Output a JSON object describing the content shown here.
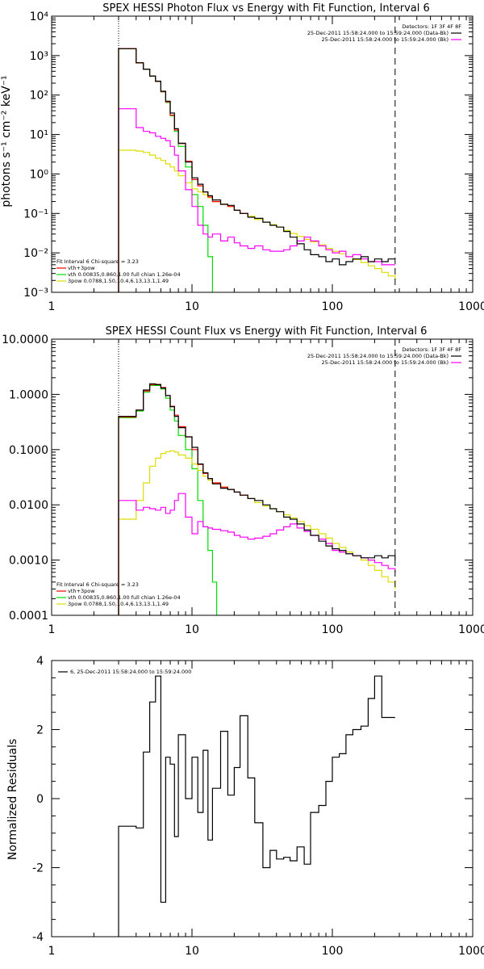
{
  "chart_data": [
    {
      "type": "line",
      "title": "SPEX HESSI Photon Flux vs Energy with Fit Function, Interval 6",
      "ylabel": "photons s⁻¹ cm⁻² keV⁻¹",
      "xscale": "log",
      "yscale": "log",
      "xlim": [
        1,
        1000
      ],
      "ylim": [
        0.001,
        10000
      ],
      "xticks": [
        "1",
        "10",
        "100",
        "1000"
      ],
      "yticks": [
        "10⁻³",
        "10⁻²",
        "10⁻¹",
        "10⁰",
        "10¹",
        "10²",
        "10³",
        "10⁴"
      ],
      "legend_top": [
        "Detectors: 1F 3F 4F 8F",
        "25-Dec-2011 15:58:24.000 to 15:59:24.000 (Data-Bk)",
        "25-Dec-2011 15:58:24.000 to 15:59:24.000 (Bk)"
      ],
      "legend_bottom": [
        "Fit Interval 6   Chi-square = 3.23",
        "vth+3pow",
        "vth 0.00835,0.860,1.00  full chian 1.26e-04",
        "3pow 0.0788,1.50,10.4,6.13,13.1,1.49"
      ],
      "vlines": [
        3,
        280
      ],
      "colors": {
        "data": "#000000",
        "total": "#ff0000",
        "vth": "#00dd00",
        "pow": "#dddd00",
        "bk": "#ff00ff"
      },
      "series": [
        {
          "key": "vth",
          "x": [
            3,
            3.5,
            4,
            4.5,
            5,
            5.5,
            6,
            6.5,
            7,
            7.5,
            8,
            9,
            10,
            11,
            12,
            13,
            14
          ],
          "values": [
            1500,
            1500,
            650,
            450,
            300,
            220,
            120,
            65,
            30,
            12,
            5,
            1.5,
            0.3,
            0.15,
            0.05,
            0.008,
            0.0005
          ]
        },
        {
          "key": "pow",
          "x": [
            3,
            3.5,
            4,
            4.5,
            5,
            5.5,
            6,
            6.5,
            7,
            7.5,
            8,
            9,
            10,
            11,
            12,
            13,
            14,
            16,
            18,
            20,
            22,
            25,
            28,
            32,
            36,
            40,
            45,
            50,
            56,
            63,
            70,
            80,
            90,
            100,
            112,
            125,
            140,
            160,
            180,
            200,
            225,
            250,
            280
          ],
          "values": [
            4,
            4,
            3.8,
            3.5,
            3,
            2.5,
            2.2,
            1.8,
            1.5,
            1.2,
            0.9,
            0.6,
            0.42,
            0.35,
            0.3,
            0.25,
            0.2,
            0.17,
            0.15,
            0.12,
            0.1,
            0.085,
            0.07,
            0.06,
            0.052,
            0.045,
            0.037,
            0.031,
            0.026,
            0.022,
            0.019,
            0.016,
            0.013,
            0.011,
            0.0095,
            0.008,
            0.0068,
            0.0057,
            0.0047,
            0.004,
            0.0032,
            0.0026,
            0.0021
          ]
        },
        {
          "key": "bk",
          "x": [
            3,
            3.5,
            4,
            4.5,
            5,
            5.5,
            6,
            6.5,
            7,
            7.5,
            8,
            9,
            10,
            11,
            12,
            13,
            14,
            16,
            18,
            20,
            22,
            25,
            28,
            32,
            36,
            40,
            45,
            50,
            56,
            63,
            70,
            80,
            90,
            100,
            112,
            125,
            140,
            160,
            180,
            200,
            225,
            250,
            280
          ],
          "values": [
            45,
            45,
            15,
            12,
            11,
            9,
            8,
            7,
            5,
            3,
            1.2,
            0.4,
            0.15,
            0.05,
            0.03,
            0.025,
            0.03,
            0.02,
            0.025,
            0.018,
            0.015,
            0.013,
            0.015,
            0.012,
            0.011,
            0.011,
            0.012,
            0.015,
            0.02,
            0.025,
            0.02,
            0.015,
            0.012,
            0.01,
            0.011,
            0.008,
            0.009,
            0.007,
            0.006,
            0.006,
            0.005,
            0.005,
            0.005
          ]
        },
        {
          "key": "total",
          "x": [
            3,
            3.5,
            4,
            4.5,
            5,
            5.5,
            6,
            6.5,
            7,
            7.5,
            8,
            9,
            10,
            11,
            12,
            13,
            14,
            16,
            18,
            20,
            22,
            25
          ],
          "values": [
            1504,
            1504,
            654,
            453,
            303,
            222,
            122,
            67,
            31,
            13,
            5.9,
            2.1,
            0.72,
            0.5,
            0.35,
            0.26,
            0.2,
            0.17,
            0.15,
            0.12,
            0.1,
            0.085
          ]
        },
        {
          "key": "data",
          "x": [
            3,
            3.5,
            4,
            4.5,
            5,
            5.5,
            6,
            6.5,
            7,
            7.5,
            8,
            9,
            10,
            11,
            12,
            13,
            14,
            16,
            18,
            20,
            22,
            25,
            28,
            32,
            36,
            40,
            45,
            50,
            56,
            63,
            70,
            80,
            90,
            100,
            112,
            125,
            140,
            160,
            180,
            200,
            225,
            250,
            280
          ],
          "values": [
            1500,
            1500,
            660,
            455,
            305,
            225,
            125,
            70,
            35,
            14,
            6,
            2,
            0.8,
            0.55,
            0.35,
            0.28,
            0.22,
            0.17,
            0.16,
            0.12,
            0.1,
            0.08,
            0.075,
            0.06,
            0.05,
            0.045,
            0.035,
            0.025,
            0.017,
            0.012,
            0.009,
            0.008,
            0.006,
            0.007,
            0.005,
            0.006,
            0.007,
            0.008,
            0.006,
            0.007,
            0.006,
            0.007,
            0.007
          ]
        }
      ]
    },
    {
      "type": "line",
      "title": "SPEX HESSI Count Flux vs Energy with Fit Function, Interval 6",
      "xscale": "log",
      "yscale": "log",
      "xlim": [
        1,
        1000
      ],
      "ylim": [
        0.0001,
        10
      ],
      "xticks": [
        "1",
        "10",
        "100",
        "1000"
      ],
      "yticks": [
        "0.0001",
        "0.0010",
        "0.0100",
        "0.1000",
        "1.0000",
        "10.0000"
      ],
      "legend_top": [
        "Detectors: 1F 3F 4F 8F",
        "25-Dec-2011 15:58:24.000 to 15:59:24.000 (Data-Bk)",
        "25-Dec-2011 15:58:24.000 to 15:59:24.000 (Bk)"
      ],
      "legend_bottom": [
        "Fit Interval 6   Chi-square = 3.23",
        "vth+3pow",
        "vth 0.00835,0.860,1.00  full chian 1.26e-04",
        "3pow 0.0788,1.50,10.4,6.13,13.1,1.49"
      ],
      "vlines": [
        3,
        280
      ],
      "series": [
        {
          "key": "vth",
          "x": [
            3,
            3.5,
            4,
            4.5,
            5,
            5.5,
            6,
            6.5,
            7,
            7.5,
            8,
            9,
            10,
            11,
            12,
            13,
            14,
            15
          ],
          "values": [
            0.38,
            0.38,
            0.5,
            1.1,
            1.45,
            1.45,
            1.25,
            0.85,
            0.52,
            0.33,
            0.18,
            0.1,
            0.045,
            0.012,
            0.004,
            0.0015,
            0.0004,
            0.0001
          ]
        },
        {
          "key": "pow",
          "x": [
            3,
            3.5,
            4,
            4.5,
            5,
            5.5,
            6,
            6.5,
            7,
            7.5,
            8,
            9,
            10,
            11,
            12,
            13,
            14,
            16,
            18,
            20,
            22,
            25,
            28,
            32,
            36,
            40,
            45,
            50,
            56,
            63,
            70,
            80,
            90,
            100,
            112,
            125,
            140,
            160,
            180,
            200,
            225,
            250,
            280
          ],
          "values": [
            0.0055,
            0.0055,
            0.012,
            0.025,
            0.05,
            0.07,
            0.085,
            0.092,
            0.095,
            0.09,
            0.08,
            0.07,
            0.055,
            0.042,
            0.033,
            0.028,
            0.024,
            0.021,
            0.019,
            0.017,
            0.015,
            0.013,
            0.011,
            0.0095,
            0.0085,
            0.0075,
            0.0066,
            0.0058,
            0.005,
            0.0042,
            0.0036,
            0.003,
            0.0025,
            0.002,
            0.0017,
            0.0014,
            0.0012,
            0.001,
            0.0008,
            0.00065,
            0.0005,
            0.0004,
            0.0003
          ]
        },
        {
          "key": "bk",
          "x": [
            3,
            3.5,
            4,
            4.5,
            5,
            5.5,
            6,
            6.5,
            7,
            7.5,
            8,
            9,
            10,
            11,
            12,
            13,
            14,
            16,
            18,
            20,
            22,
            25,
            28,
            32,
            36,
            40,
            45,
            50,
            56,
            63,
            70,
            80,
            90,
            100,
            112,
            125,
            140,
            160,
            180,
            200,
            225,
            250,
            280
          ],
          "values": [
            0.012,
            0.012,
            0.008,
            0.009,
            0.0085,
            0.008,
            0.009,
            0.007,
            0.008,
            0.012,
            0.016,
            0.006,
            0.003,
            0.005,
            0.004,
            0.0038,
            0.0036,
            0.0034,
            0.0032,
            0.0028,
            0.0026,
            0.0024,
            0.0025,
            0.0027,
            0.003,
            0.0035,
            0.004,
            0.0045,
            0.0038,
            0.0033,
            0.0028,
            0.0024,
            0.002,
            0.0015,
            0.0014,
            0.0013,
            0.0012,
            0.0011,
            0.001,
            0.0009,
            0.0008,
            0.0007,
            0.0006
          ]
        },
        {
          "key": "total",
          "x": [
            3,
            3.5,
            4,
            4.5,
            5,
            5.5,
            6,
            6.5,
            7,
            7.5,
            8,
            9,
            10,
            11,
            12,
            13,
            14,
            16,
            18,
            20,
            22,
            25
          ],
          "values": [
            0.39,
            0.39,
            0.52,
            1.15,
            1.5,
            1.52,
            1.33,
            0.95,
            0.61,
            0.42,
            0.26,
            0.17,
            0.1,
            0.054,
            0.037,
            0.03,
            0.025,
            0.021,
            0.019,
            0.017,
            0.015,
            0.013
          ]
        },
        {
          "key": "data",
          "x": [
            3,
            3.5,
            4,
            4.5,
            5,
            5.5,
            6,
            6.5,
            7,
            7.5,
            8,
            9,
            10,
            11,
            12,
            13,
            14,
            16,
            18,
            20,
            22,
            25,
            28,
            32,
            36,
            40,
            45,
            50,
            56,
            63,
            70,
            80,
            90,
            100,
            112,
            125,
            140,
            160,
            180,
            200,
            225,
            250,
            280
          ],
          "values": [
            0.4,
            0.4,
            0.52,
            1.2,
            1.55,
            1.5,
            1.3,
            0.95,
            0.6,
            0.4,
            0.25,
            0.17,
            0.11,
            0.055,
            0.038,
            0.03,
            0.024,
            0.02,
            0.019,
            0.017,
            0.015,
            0.013,
            0.012,
            0.01,
            0.0085,
            0.0075,
            0.006,
            0.0055,
            0.0045,
            0.0035,
            0.0028,
            0.0022,
            0.0018,
            0.0016,
            0.0015,
            0.0013,
            0.0012,
            0.0011,
            0.0011,
            0.0012,
            0.0011,
            0.0012,
            0.001
          ]
        }
      ]
    },
    {
      "type": "line",
      "ylabel": "Normalized Residuals",
      "xscale": "log",
      "xlim": [
        1,
        1000
      ],
      "ylim": [
        -4,
        4
      ],
      "xticks": [
        "1",
        "10",
        "100",
        "1000"
      ],
      "yticks": [
        "-4",
        "-2",
        "0",
        "2",
        "4"
      ],
      "legend": "6, 25-Dec-2011 15:58:24.000 to 15:59:24.000",
      "series": [
        {
          "key": "data",
          "x": [
            3,
            3.5,
            4,
            4.5,
            5,
            5.5,
            6,
            6.5,
            7,
            7.5,
            8,
            9,
            10,
            11,
            12,
            13,
            14,
            16,
            18,
            20,
            22,
            25,
            28,
            32,
            36,
            40,
            45,
            50,
            56,
            63,
            70,
            80,
            90,
            100,
            112,
            125,
            140,
            160,
            180,
            200,
            225,
            250,
            280
          ],
          "values": [
            -0.8,
            -0.8,
            -0.85,
            1.35,
            2.8,
            3.55,
            -3.0,
            1.2,
            1.0,
            -1.1,
            1.85,
            0.0,
            1.2,
            -0.4,
            1.4,
            -1.2,
            0.3,
            1.95,
            0.1,
            0.9,
            2.4,
            0.6,
            -0.7,
            -2.0,
            -1.5,
            -1.75,
            -1.7,
            -1.8,
            -1.4,
            -1.9,
            -0.4,
            -0.2,
            0.5,
            1.2,
            1.3,
            1.85,
            2.0,
            2.1,
            2.9,
            3.55,
            2.35,
            2.35,
            2.35
          ]
        }
      ]
    }
  ]
}
